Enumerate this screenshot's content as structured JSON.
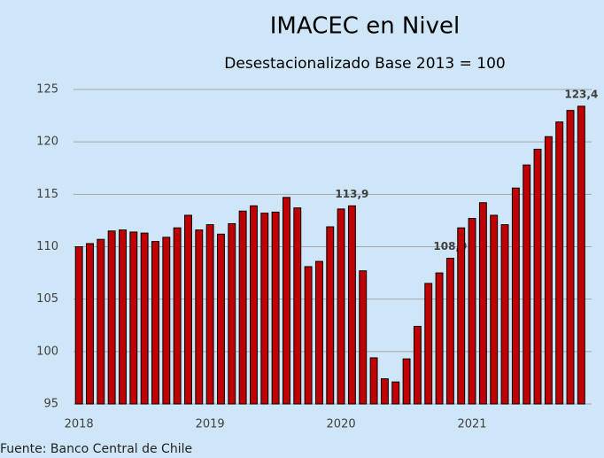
{
  "chart_data": {
    "type": "bar",
    "title": "IMACEC en Nivel",
    "subtitle": "Desestacionalizado Base 2013 = 100",
    "source": "Fuente: Banco Central de Chile",
    "categories": [
      "2018",
      null,
      null,
      null,
      null,
      null,
      null,
      null,
      null,
      null,
      null,
      null,
      "2019",
      null,
      null,
      null,
      null,
      null,
      null,
      null,
      null,
      null,
      null,
      null,
      "2020",
      null,
      null,
      null,
      null,
      null,
      null,
      null,
      null,
      null,
      null,
      null,
      "2021",
      null,
      null,
      null,
      null,
      null,
      null,
      null,
      null,
      null,
      null
    ],
    "values": [
      110.0,
      110.3,
      110.7,
      111.5,
      111.6,
      111.4,
      111.3,
      110.5,
      110.9,
      111.8,
      113.0,
      111.6,
      112.1,
      111.2,
      112.2,
      113.4,
      113.9,
      113.2,
      113.3,
      114.7,
      113.7,
      108.1,
      108.6,
      111.9,
      113.6,
      113.9,
      107.7,
      99.4,
      97.4,
      97.1,
      99.3,
      102.4,
      106.5,
      107.5,
      108.9,
      111.8,
      112.7,
      114.2,
      113.0,
      112.1,
      115.6,
      117.8,
      119.3,
      120.5,
      121.9,
      123.0,
      123.4
    ],
    "value_labels": [
      null,
      null,
      null,
      null,
      null,
      null,
      null,
      null,
      null,
      null,
      null,
      null,
      null,
      null,
      null,
      null,
      null,
      null,
      null,
      null,
      null,
      null,
      null,
      null,
      null,
      "113,9",
      null,
      null,
      null,
      null,
      null,
      null,
      null,
      null,
      "108,9",
      null,
      null,
      null,
      null,
      null,
      null,
      null,
      null,
      null,
      null,
      null,
      "123,4"
    ],
    "color": "#c00000",
    "ylim": [
      95,
      125
    ],
    "yticks": [
      95,
      100,
      105,
      110,
      115,
      120,
      125
    ],
    "grid": true
  }
}
